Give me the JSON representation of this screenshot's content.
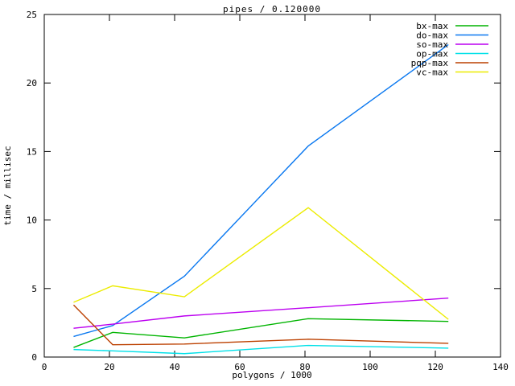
{
  "chart_data": {
    "type": "line",
    "title": "pipes / 0.120000",
    "xlabel": "polygons / 1000",
    "ylabel": "time / millisec",
    "xlim": [
      0,
      140
    ],
    "ylim": [
      0,
      25
    ],
    "xticks": [
      0,
      20,
      40,
      60,
      80,
      100,
      120,
      140
    ],
    "yticks": [
      0,
      5,
      10,
      15,
      20,
      25
    ],
    "grid": false,
    "legend_position": "top-right",
    "x": [
      9,
      21,
      43,
      81,
      124
    ],
    "series": [
      {
        "name": "bx-max",
        "color": "#00b400",
        "values": [
          0.7,
          1.8,
          1.4,
          2.8,
          2.6
        ]
      },
      {
        "name": "do-max",
        "color": "#0a78f0",
        "values": [
          1.5,
          2.3,
          5.9,
          15.4,
          22.8
        ]
      },
      {
        "name": "so-max",
        "color": "#bc00f0",
        "values": [
          2.1,
          2.4,
          3.0,
          3.6,
          4.3
        ]
      },
      {
        "name": "op-max",
        "color": "#00e0e8",
        "values": [
          0.55,
          0.45,
          0.25,
          0.85,
          0.65
        ]
      },
      {
        "name": "pqp-max",
        "color": "#bc4000",
        "values": [
          3.8,
          0.9,
          0.95,
          1.3,
          1.0
        ]
      },
      {
        "name": "vc-max",
        "color": "#ecec00",
        "values": [
          4.0,
          5.2,
          4.4,
          10.9,
          2.75
        ]
      }
    ]
  },
  "layout_note_visible_text_only": true
}
